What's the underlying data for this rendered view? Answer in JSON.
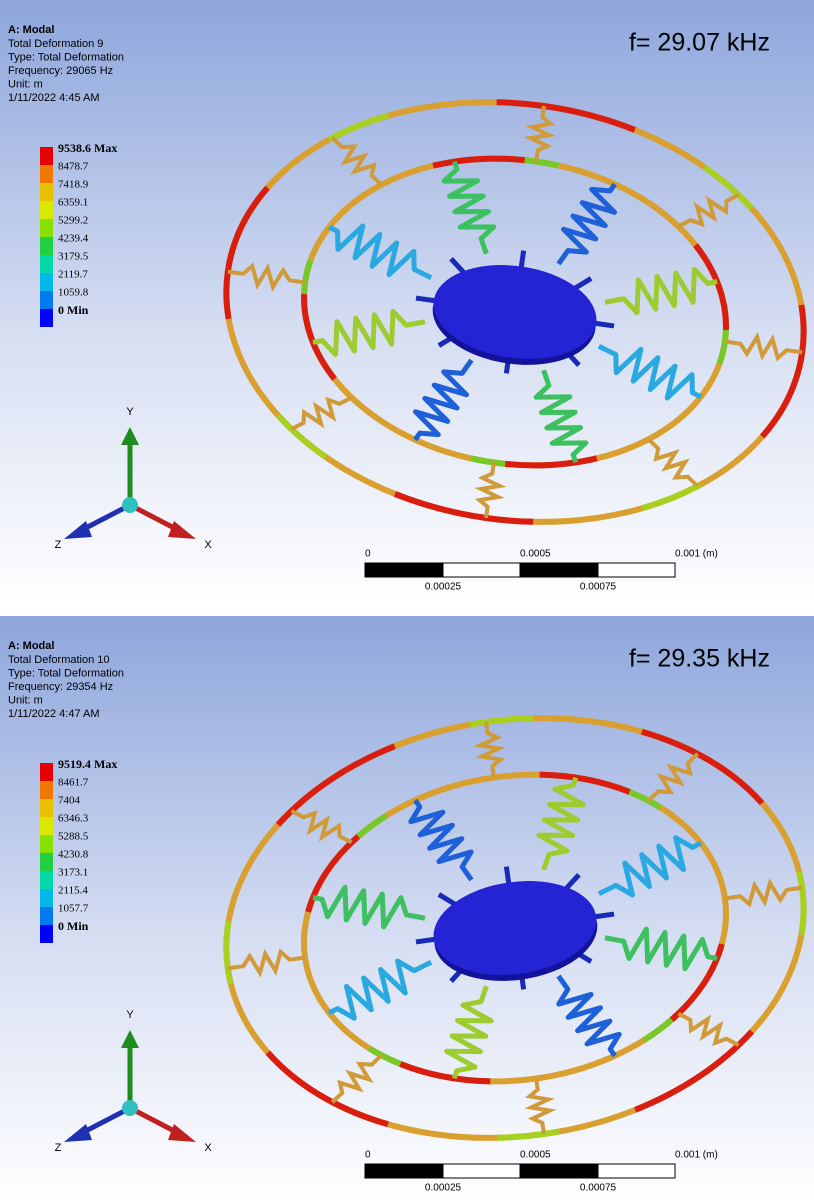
{
  "panels": [
    {
      "header": {
        "title": "A: Modal",
        "lines": [
          "Total Deformation 9",
          "Type: Total Deformation",
          "Frequency: 29065 Hz",
          "Unit: m",
          "1/11/2022 4:45 AM"
        ]
      },
      "frequency_label": "f= 29.07 kHz",
      "legend": {
        "labels": [
          "9538.6 Max",
          "8478.7",
          "7418.9",
          "6359.1",
          "5299.2",
          "4239.4",
          "3179.5",
          "2119.7",
          "1059.8",
          "0 Min"
        ],
        "colors": [
          "#e60000",
          "#f07800",
          "#e8c000",
          "#d8e800",
          "#88e000",
          "#20d040",
          "#00d8a8",
          "#00b8e8",
          "#0078f0",
          "#0000ff"
        ]
      },
      "triad": {
        "y": "Y",
        "x": "X",
        "z": "Z"
      },
      "scale_bar": {
        "top_labels": [
          "0",
          "0.0005",
          "0.001 (m)"
        ],
        "bottom_labels": [
          "0.00025",
          "0.00075"
        ]
      }
    },
    {
      "header": {
        "title": "A: Modal",
        "lines": [
          "Total Deformation 10",
          "Type: Total Deformation",
          "Frequency: 29354 Hz",
          "Unit: m",
          "1/11/2022 4:47 AM"
        ]
      },
      "frequency_label": "f= 29.35 kHz",
      "legend": {
        "labels": [
          "9519.4 Max",
          "8461.7",
          "7404",
          "6346.3",
          "5288.5",
          "4230.8",
          "3173.1",
          "2115.4",
          "1057.7",
          "0 Min"
        ],
        "colors": [
          "#e60000",
          "#f07800",
          "#e8c000",
          "#d8e800",
          "#88e000",
          "#20d040",
          "#00d8a8",
          "#00b8e8",
          "#0078f0",
          "#0000ff"
        ]
      },
      "triad": {
        "y": "Y",
        "x": "X",
        "z": "Z"
      },
      "scale_bar": {
        "top_labels": [
          "0",
          "0.0005",
          "0.001 (m)"
        ],
        "bottom_labels": [
          "0.00025",
          "0.00075"
        ]
      }
    }
  ]
}
